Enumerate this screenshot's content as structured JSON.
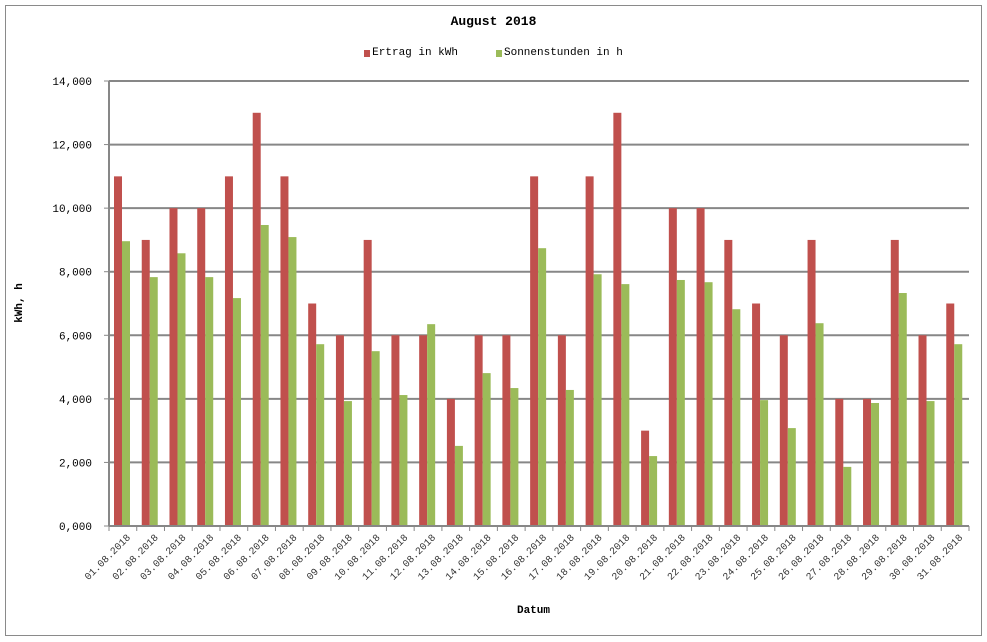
{
  "chart": {
    "title": "August 2018",
    "legend": [
      {
        "label": "Ertrag in kWh",
        "color": "#c0504d"
      },
      {
        "label": "Sonnenstunden in h",
        "color": "#9bbb59"
      }
    ],
    "ylabel": "kWh, h",
    "xlabel": "Datum",
    "yticks": [
      "0,000",
      "2,000",
      "4,000",
      "6,000",
      "8,000",
      "10,000",
      "12,000",
      "14,000"
    ]
  },
  "chart_data": {
    "type": "bar",
    "title": "August 2018",
    "xlabel": "Datum",
    "ylabel": "kWh, h",
    "ylim": [
      0,
      14
    ],
    "grid": true,
    "legend_position": "top",
    "categories": [
      "01.08.2018",
      "02.08.2018",
      "03.08.2018",
      "04.08.2018",
      "05.08.2018",
      "06.08.2018",
      "07.08.2018",
      "08.08.2018",
      "09.08.2018",
      "10.08.2018",
      "11.08.2018",
      "12.08.2018",
      "13.08.2018",
      "14.08.2018",
      "15.08.2018",
      "16.08.2018",
      "17.08.2018",
      "18.08.2018",
      "19.08.2018",
      "20.08.2018",
      "21.08.2018",
      "22.08.2018",
      "23.08.2018",
      "24.08.2018",
      "25.08.2018",
      "26.08.2018",
      "27.08.2018",
      "28.08.2018",
      "29.08.2018",
      "30.08.2018",
      "31.08.2018"
    ],
    "series": [
      {
        "name": "Ertrag in kWh",
        "color": "#c0504d",
        "values": [
          11,
          9,
          10,
          10,
          11,
          13,
          11,
          7,
          6,
          9,
          6,
          6,
          4,
          6,
          6,
          11,
          6,
          11,
          13,
          3,
          10,
          10,
          9,
          7,
          6,
          9,
          4,
          4,
          9,
          6,
          7
        ]
      },
      {
        "name": "Sonnenstunden in h",
        "color": "#9bbb59",
        "values": [
          8.96,
          7.83,
          8.58,
          7.83,
          7.17,
          9.47,
          9.09,
          5.72,
          3.93,
          5.5,
          4.12,
          6.35,
          2.52,
          4.81,
          4.34,
          8.74,
          4.28,
          7.92,
          7.61,
          2.2,
          7.74,
          7.67,
          6.82,
          3.96,
          3.08,
          6.38,
          1.86,
          3.87,
          7.33,
          3.93,
          5.72
        ]
      }
    ]
  }
}
